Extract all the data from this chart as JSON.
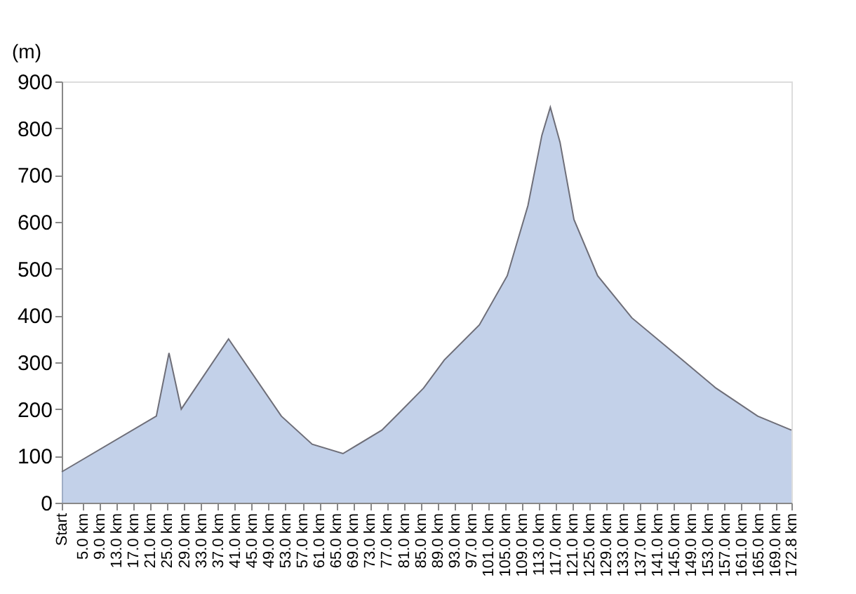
{
  "chart_data": {
    "type": "area",
    "ylabel": "(m)",
    "color": "#a9bde0",
    "x": [
      0,
      22.4,
      25.4,
      28.3,
      39.5,
      52,
      59.3,
      66.6,
      75.8,
      79.7,
      85.7,
      90.6,
      98.9,
      105.5,
      110.4,
      113.7,
      115.7,
      118,
      121.3,
      126.9,
      135,
      145,
      154.9,
      164.8,
      172.8
    ],
    "values": [
      66,
      185,
      320,
      200,
      350,
      185,
      125,
      105,
      155,
      190,
      245,
      305,
      380,
      485,
      635,
      785,
      845,
      770,
      605,
      485,
      395,
      320,
      245,
      185,
      155
    ],
    "xlim": [
      0,
      172.8
    ],
    "xticks": [
      {
        "value": 0,
        "label": "Start"
      },
      {
        "value": 5,
        "label": "5.0 km"
      },
      {
        "value": 9,
        "label": "9.0 km"
      },
      {
        "value": 13,
        "label": "13.0 km"
      },
      {
        "value": 17,
        "label": "17.0 km"
      },
      {
        "value": 21,
        "label": "21.0 km"
      },
      {
        "value": 25,
        "label": "25.0 km"
      },
      {
        "value": 29,
        "label": "29.0 km"
      },
      {
        "value": 33,
        "label": "33.0 km"
      },
      {
        "value": 37,
        "label": "37.0 km"
      },
      {
        "value": 41,
        "label": "41.0 km"
      },
      {
        "value": 45,
        "label": "45.0 km"
      },
      {
        "value": 49,
        "label": "49.0 km"
      },
      {
        "value": 53,
        "label": "53.0 km"
      },
      {
        "value": 57,
        "label": "57.0 km"
      },
      {
        "value": 61,
        "label": "61.0 km"
      },
      {
        "value": 65,
        "label": "65.0 km"
      },
      {
        "value": 69,
        "label": "69.0 km"
      },
      {
        "value": 73,
        "label": "73.0 km"
      },
      {
        "value": 77,
        "label": "77.0 km"
      },
      {
        "value": 81,
        "label": "81.0 km"
      },
      {
        "value": 85,
        "label": "85.0 km"
      },
      {
        "value": 89,
        "label": "89.0 km"
      },
      {
        "value": 93,
        "label": "93.0 km"
      },
      {
        "value": 97,
        "label": "97.0 km"
      },
      {
        "value": 101,
        "label": "101.0 km"
      },
      {
        "value": 105,
        "label": "105.0 km"
      },
      {
        "value": 109,
        "label": "109.0 km"
      },
      {
        "value": 113,
        "label": "113.0 km"
      },
      {
        "value": 117,
        "label": "117.0 km"
      },
      {
        "value": 121,
        "label": "121.0 km"
      },
      {
        "value": 125,
        "label": "125.0 km"
      },
      {
        "value": 129,
        "label": "129.0 km"
      },
      {
        "value": 133,
        "label": "133.0 km"
      },
      {
        "value": 137,
        "label": "137.0 km"
      },
      {
        "value": 141,
        "label": "141.0 km"
      },
      {
        "value": 145,
        "label": "145.0 km"
      },
      {
        "value": 149,
        "label": "149.0 km"
      },
      {
        "value": 153,
        "label": "153.0 km"
      },
      {
        "value": 157,
        "label": "157.0 km"
      },
      {
        "value": 161,
        "label": "161.0 km"
      },
      {
        "value": 165,
        "label": "165.0 km"
      },
      {
        "value": 169,
        "label": "169.0 km"
      },
      {
        "value": 172.8,
        "label": "172.8 km"
      }
    ],
    "ylim": [
      0,
      900
    ],
    "yticks": [
      0,
      100,
      200,
      300,
      400,
      500,
      600,
      700,
      800,
      900
    ],
    "grid": false
  }
}
